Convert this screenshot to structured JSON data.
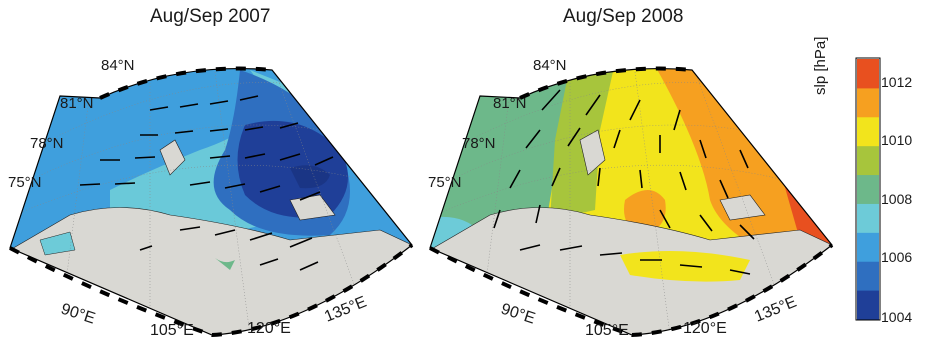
{
  "panels": [
    {
      "title": "Aug/Sep 2007",
      "lat_labels": [
        "84°N",
        "81°N",
        "78°N",
        "75°N"
      ],
      "lon_labels": [
        "90°E",
        "105°E",
        "120°E",
        "135°E"
      ],
      "dominant_slp": "low (1004–1006 hPa) centred east of 120°E"
    },
    {
      "title": "Aug/Sep 2008",
      "lat_labels": [
        "84°N",
        "81°N",
        "78°N",
        "75°N"
      ],
      "lon_labels": [
        "90°E",
        "105°E",
        "120°E",
        "135°E"
      ],
      "dominant_slp": "high (1010–1012 hPa) over central region"
    }
  ],
  "colorbar": {
    "title": "slp [hPa]",
    "tick_labels": [
      "1012",
      "1010",
      "1008",
      "1006",
      "1004"
    ],
    "colors": [
      "#e8501f",
      "#f6a020",
      "#f2e41c",
      "#a7c53c",
      "#6db88a",
      "#6dcbd8",
      "#3f9fdd",
      "#2f6fc0",
      "#1f3f98"
    ]
  },
  "colors": {
    "land": "#d9d8d3",
    "frame_dash": "#000000"
  }
}
